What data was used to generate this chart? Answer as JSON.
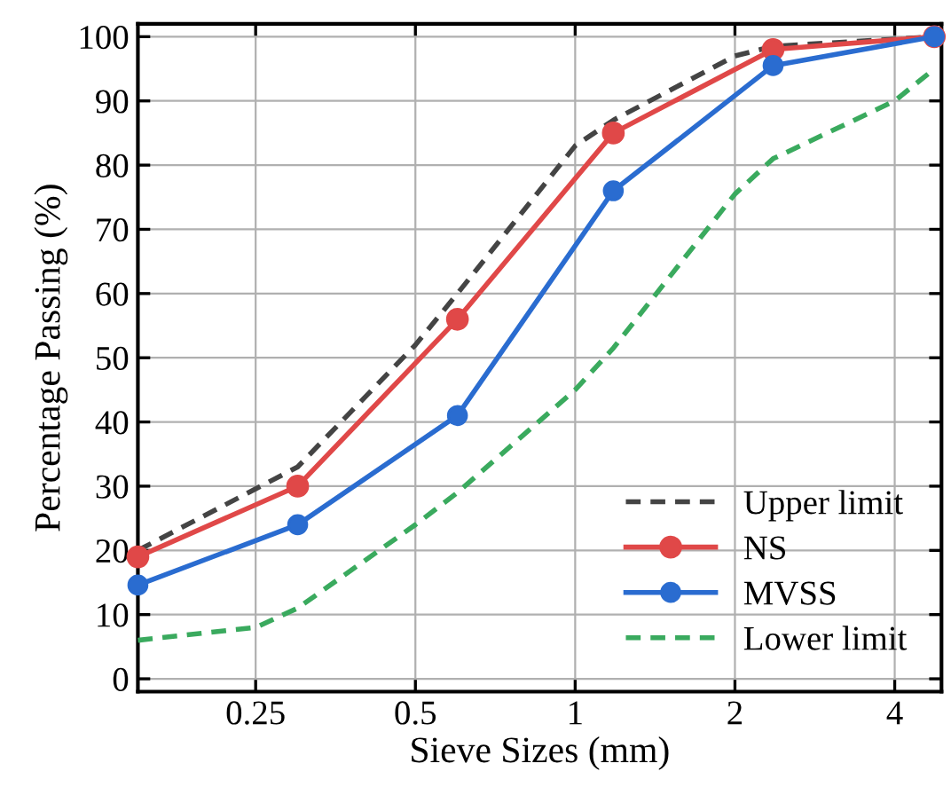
{
  "chart_data": {
    "type": "line",
    "xlabel": "Sieve Sizes (mm)",
    "ylabel": "Percentage Passing (%)",
    "log": "x",
    "xlim": [
      0.15,
      4.9
    ],
    "xticks": [
      0.25,
      0.5,
      1,
      2,
      4
    ],
    "ylim": [
      -2,
      102
    ],
    "yticks": [
      0,
      10,
      20,
      30,
      40,
      50,
      60,
      70,
      80,
      90,
      100
    ],
    "grid": true,
    "legend": "bottom right",
    "series": [
      {
        "name": "Upper limit",
        "color": "#444444",
        "line_style": "dashed",
        "marker": "none",
        "x": [
          0.15,
          0.3,
          0.5,
          0.6,
          1,
          1.18,
          2,
          2.36,
          4.75
        ],
        "values": [
          20,
          33,
          52,
          60,
          83,
          87,
          97,
          98.5,
          100
        ]
      },
      {
        "name": "NS",
        "color": "#e04848",
        "line_style": "solid",
        "marker": "circle",
        "x": [
          0.15,
          0.3,
          0.6,
          1.18,
          2.36,
          4.75
        ],
        "values": [
          19,
          30,
          56,
          85,
          98,
          100
        ]
      },
      {
        "name": "MVSS",
        "color": "#2a6cd0",
        "line_style": "solid",
        "marker": "circle",
        "x": [
          0.15,
          0.3,
          0.6,
          1.18,
          2.36,
          4.75
        ],
        "values": [
          14.6,
          24,
          41,
          76,
          95.5,
          100
        ]
      },
      {
        "name": "Lower limit",
        "color": "#3aaa5e",
        "line_style": "dashed",
        "marker": "none",
        "x": [
          0.15,
          0.25,
          0.3,
          0.5,
          0.6,
          1,
          1.18,
          2,
          2.36,
          4,
          4.75
        ],
        "values": [
          6,
          8,
          11,
          24,
          29,
          45,
          51.5,
          75.5,
          81,
          90,
          95
        ]
      }
    ]
  }
}
